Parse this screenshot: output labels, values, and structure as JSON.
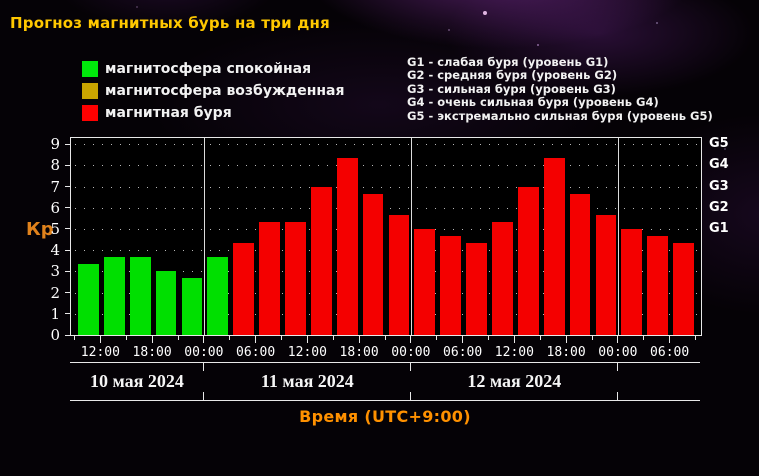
{
  "title": "Прогноз магнитных бурь на три дня",
  "colors": {
    "title": "#ffc800",
    "axis_title": "#ff9100",
    "kp_label": "#e0821c"
  },
  "legend": {
    "items": [
      {
        "label": "магнитосфера спокойная",
        "color": "#00e80b",
        "state": "quiet"
      },
      {
        "label": "магнитосфера возбужденная",
        "color": "#c9a400",
        "state": "excited"
      },
      {
        "label": "магнитная буря",
        "color": "#ff0000",
        "state": "storm"
      }
    ]
  },
  "storm_scale_legend": {
    "lines": [
      "G1 - слабая буря (уровень G1)",
      "G2 - средняя буря (уровень G2)",
      "G3 - сильная буря (уровень G3)",
      "G4 - очень сильная буря (уровень G4)",
      "G5 - экстремально сильная буря (уровень G5)"
    ]
  },
  "chart_data": {
    "type": "bar",
    "title": "Прогноз магнитных бурь на три дня",
    "ylabel": "Кр",
    "xlabel": "Время (UTC+9:00)",
    "ylim": [
      0,
      9.29
    ],
    "grid": "dotted",
    "bar_interval_hours": 3,
    "y_ticks": [
      0,
      1,
      2,
      3,
      4,
      5,
      6,
      7,
      8,
      9
    ],
    "right_axis": [
      {
        "label": "G5",
        "level": 9
      },
      {
        "label": "G4",
        "level": 8
      },
      {
        "label": "G3",
        "level": 7
      },
      {
        "label": "G2",
        "level": 6
      },
      {
        "label": "G1",
        "level": 5
      }
    ],
    "series_colors": {
      "quiet": "#00df00",
      "excited": "#c9a400",
      "storm": "#f40000"
    },
    "bars": [
      {
        "value": 3.33,
        "state": "quiet"
      },
      {
        "value": 3.67,
        "state": "quiet"
      },
      {
        "value": 3.67,
        "state": "quiet"
      },
      {
        "value": 3.0,
        "state": "quiet"
      },
      {
        "value": 2.67,
        "state": "quiet"
      },
      {
        "value": 3.67,
        "state": "quiet"
      },
      {
        "value": 4.33,
        "state": "storm"
      },
      {
        "value": 5.33,
        "state": "storm"
      },
      {
        "value": 5.33,
        "state": "storm"
      },
      {
        "value": 7.0,
        "state": "storm"
      },
      {
        "value": 8.33,
        "state": "storm"
      },
      {
        "value": 6.67,
        "state": "storm"
      },
      {
        "value": 5.67,
        "state": "storm"
      },
      {
        "value": 5.0,
        "state": "storm"
      },
      {
        "value": 4.67,
        "state": "storm"
      },
      {
        "value": 4.33,
        "state": "storm"
      },
      {
        "value": 5.33,
        "state": "storm"
      },
      {
        "value": 7.0,
        "state": "storm"
      },
      {
        "value": 8.33,
        "state": "storm"
      },
      {
        "value": 6.67,
        "state": "storm"
      },
      {
        "value": 5.67,
        "state": "storm"
      },
      {
        "value": 5.0,
        "state": "storm"
      },
      {
        "value": 4.67,
        "state": "storm"
      },
      {
        "value": 4.33,
        "state": "storm"
      }
    ],
    "x_ticks": [
      {
        "label": "12:00",
        "boundary": 1
      },
      {
        "label": "18:00",
        "boundary": 3
      },
      {
        "label": "00:00",
        "boundary": 5
      },
      {
        "label": "06:00",
        "boundary": 7
      },
      {
        "label": "12:00",
        "boundary": 9
      },
      {
        "label": "18:00",
        "boundary": 11
      },
      {
        "label": "00:00",
        "boundary": 13
      },
      {
        "label": "06:00",
        "boundary": 15
      },
      {
        "label": "12:00",
        "boundary": 17
      },
      {
        "label": "18:00",
        "boundary": 19
      },
      {
        "label": "00:00",
        "boundary": 21
      },
      {
        "label": "06:00",
        "boundary": 23
      }
    ],
    "day_divider_boundaries": [
      5,
      13,
      21
    ],
    "date_sections": [
      {
        "label": "10 мая 2024",
        "from": 0,
        "to": 5
      },
      {
        "label": "11 мая 2024",
        "from": 5,
        "to": 13
      },
      {
        "label": "12 мая 2024",
        "from": 13,
        "to": 21
      },
      {
        "label": "",
        "from": 21,
        "to": 24
      }
    ]
  }
}
